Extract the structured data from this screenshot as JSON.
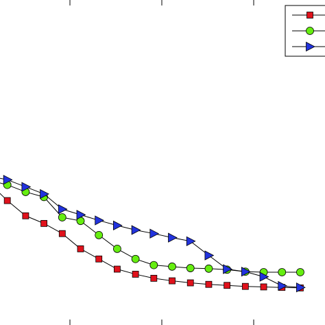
{
  "chart_data": {
    "type": "line",
    "x": [
      0,
      1,
      2,
      3,
      4,
      5,
      6,
      7,
      8,
      9,
      10,
      11,
      12,
      13,
      14,
      15,
      16,
      17
    ],
    "series": [
      {
        "marker": "square",
        "color": "#e0121c",
        "values": [
          0.28,
          0.245,
          0.215,
          0.2,
          0.18,
          0.15,
          0.13,
          0.11,
          0.1,
          0.092,
          0.087,
          0.083,
          0.08,
          0.078,
          0.076,
          0.075,
          0.074,
          0.073
        ]
      },
      {
        "marker": "circle",
        "color": "#66ee11",
        "values": [
          0.285,
          0.276,
          0.262,
          0.252,
          0.212,
          0.205,
          0.177,
          0.15,
          0.13,
          0.118,
          0.115,
          0.112,
          0.111,
          0.109,
          0.105,
          0.104,
          0.104,
          0.104
        ]
      },
      {
        "marker": "triangle-right",
        "color": "#2233dd",
        "values": [
          0.293,
          0.286,
          0.272,
          0.258,
          0.228,
          0.217,
          0.206,
          0.196,
          0.187,
          0.18,
          0.172,
          0.165,
          0.137,
          0.11,
          0.105,
          0.095,
          0.077,
          0.074
        ]
      }
    ],
    "xlim": [
      0.6,
      18.35
    ],
    "ylim": [
      0.0,
      0.64
    ],
    "legend_position": "top-right",
    "grid": false
  }
}
